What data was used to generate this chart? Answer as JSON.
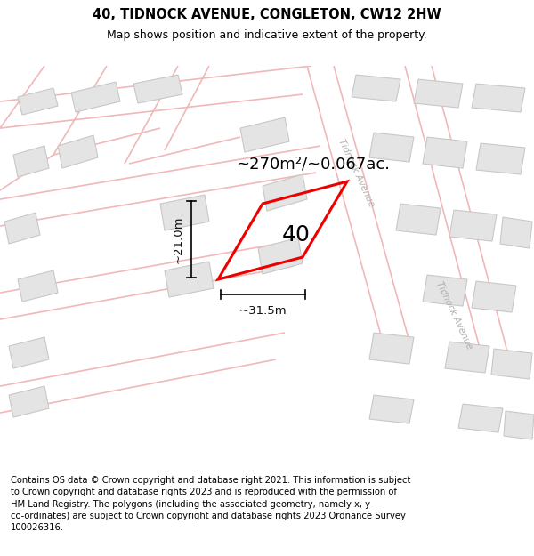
{
  "title": "40, TIDNOCK AVENUE, CONGLETON, CW12 2HW",
  "subtitle": "Map shows position and indicative extent of the property.",
  "area_label": "~270m²/~0.067ac.",
  "number_label": "40",
  "dim_width": "~31.5m",
  "dim_height": "~21.0m",
  "street_label_1": "Tidnock Avenue",
  "street_label_2": "Tidnock Avenue",
  "footer": "Contains OS data © Crown copyright and database right 2021. This information is subject to Crown copyright and database rights 2023 and is reproduced with the permission of HM Land Registry. The polygons (including the associated geometry, namely x, y co-ordinates) are subject to Crown copyright and database rights 2023 Ordnance Survey 100026316.",
  "map_bg": "#ffffff",
  "road_color": "#f0b8b8",
  "building_color": "#e4e4e4",
  "building_outline": "#c8c8c8",
  "plot_color": "#ee0000",
  "dim_color": "#111111",
  "street_text_color": "#b0b0b0",
  "title_fontsize": 10.5,
  "subtitle_fontsize": 9,
  "label_fontsize": 13,
  "number_fontsize": 18,
  "footer_fontsize": 7.2,
  "dim_fontsize": 9.5
}
